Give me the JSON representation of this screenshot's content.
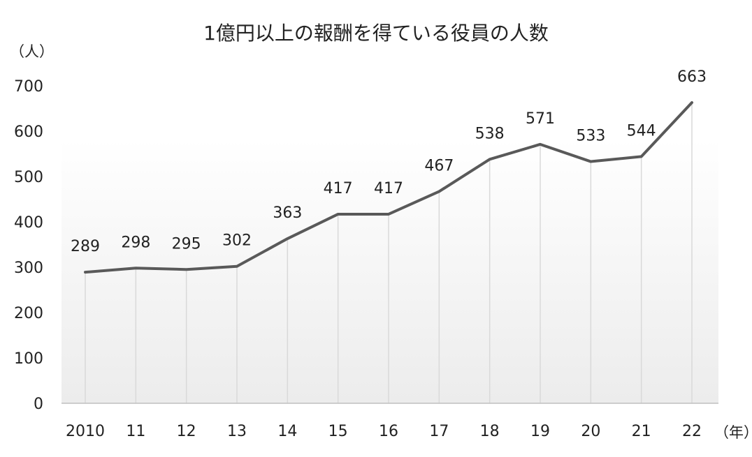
{
  "chart_data": {
    "type": "line",
    "title": "1億円以上の報酬を得ている役員の人数",
    "ylabel": "（人）",
    "xlabel": "（年）",
    "categories": [
      "2010",
      "11",
      "12",
      "13",
      "14",
      "15",
      "16",
      "17",
      "18",
      "19",
      "20",
      "21",
      "22"
    ],
    "series": [
      {
        "values": [
          289,
          298,
          295,
          302,
          363,
          417,
          417,
          467,
          538,
          571,
          533,
          544,
          663
        ]
      }
    ],
    "ylim": [
      0,
      700
    ],
    "yticks": [
      0,
      100,
      200,
      300,
      400,
      500,
      600,
      700
    ],
    "data_labels": true,
    "grid": "vertical drop lines at each category",
    "colors": {
      "line": "#595959",
      "dropline": "#d9d9d9",
      "axis": "#bfbfbf"
    }
  }
}
